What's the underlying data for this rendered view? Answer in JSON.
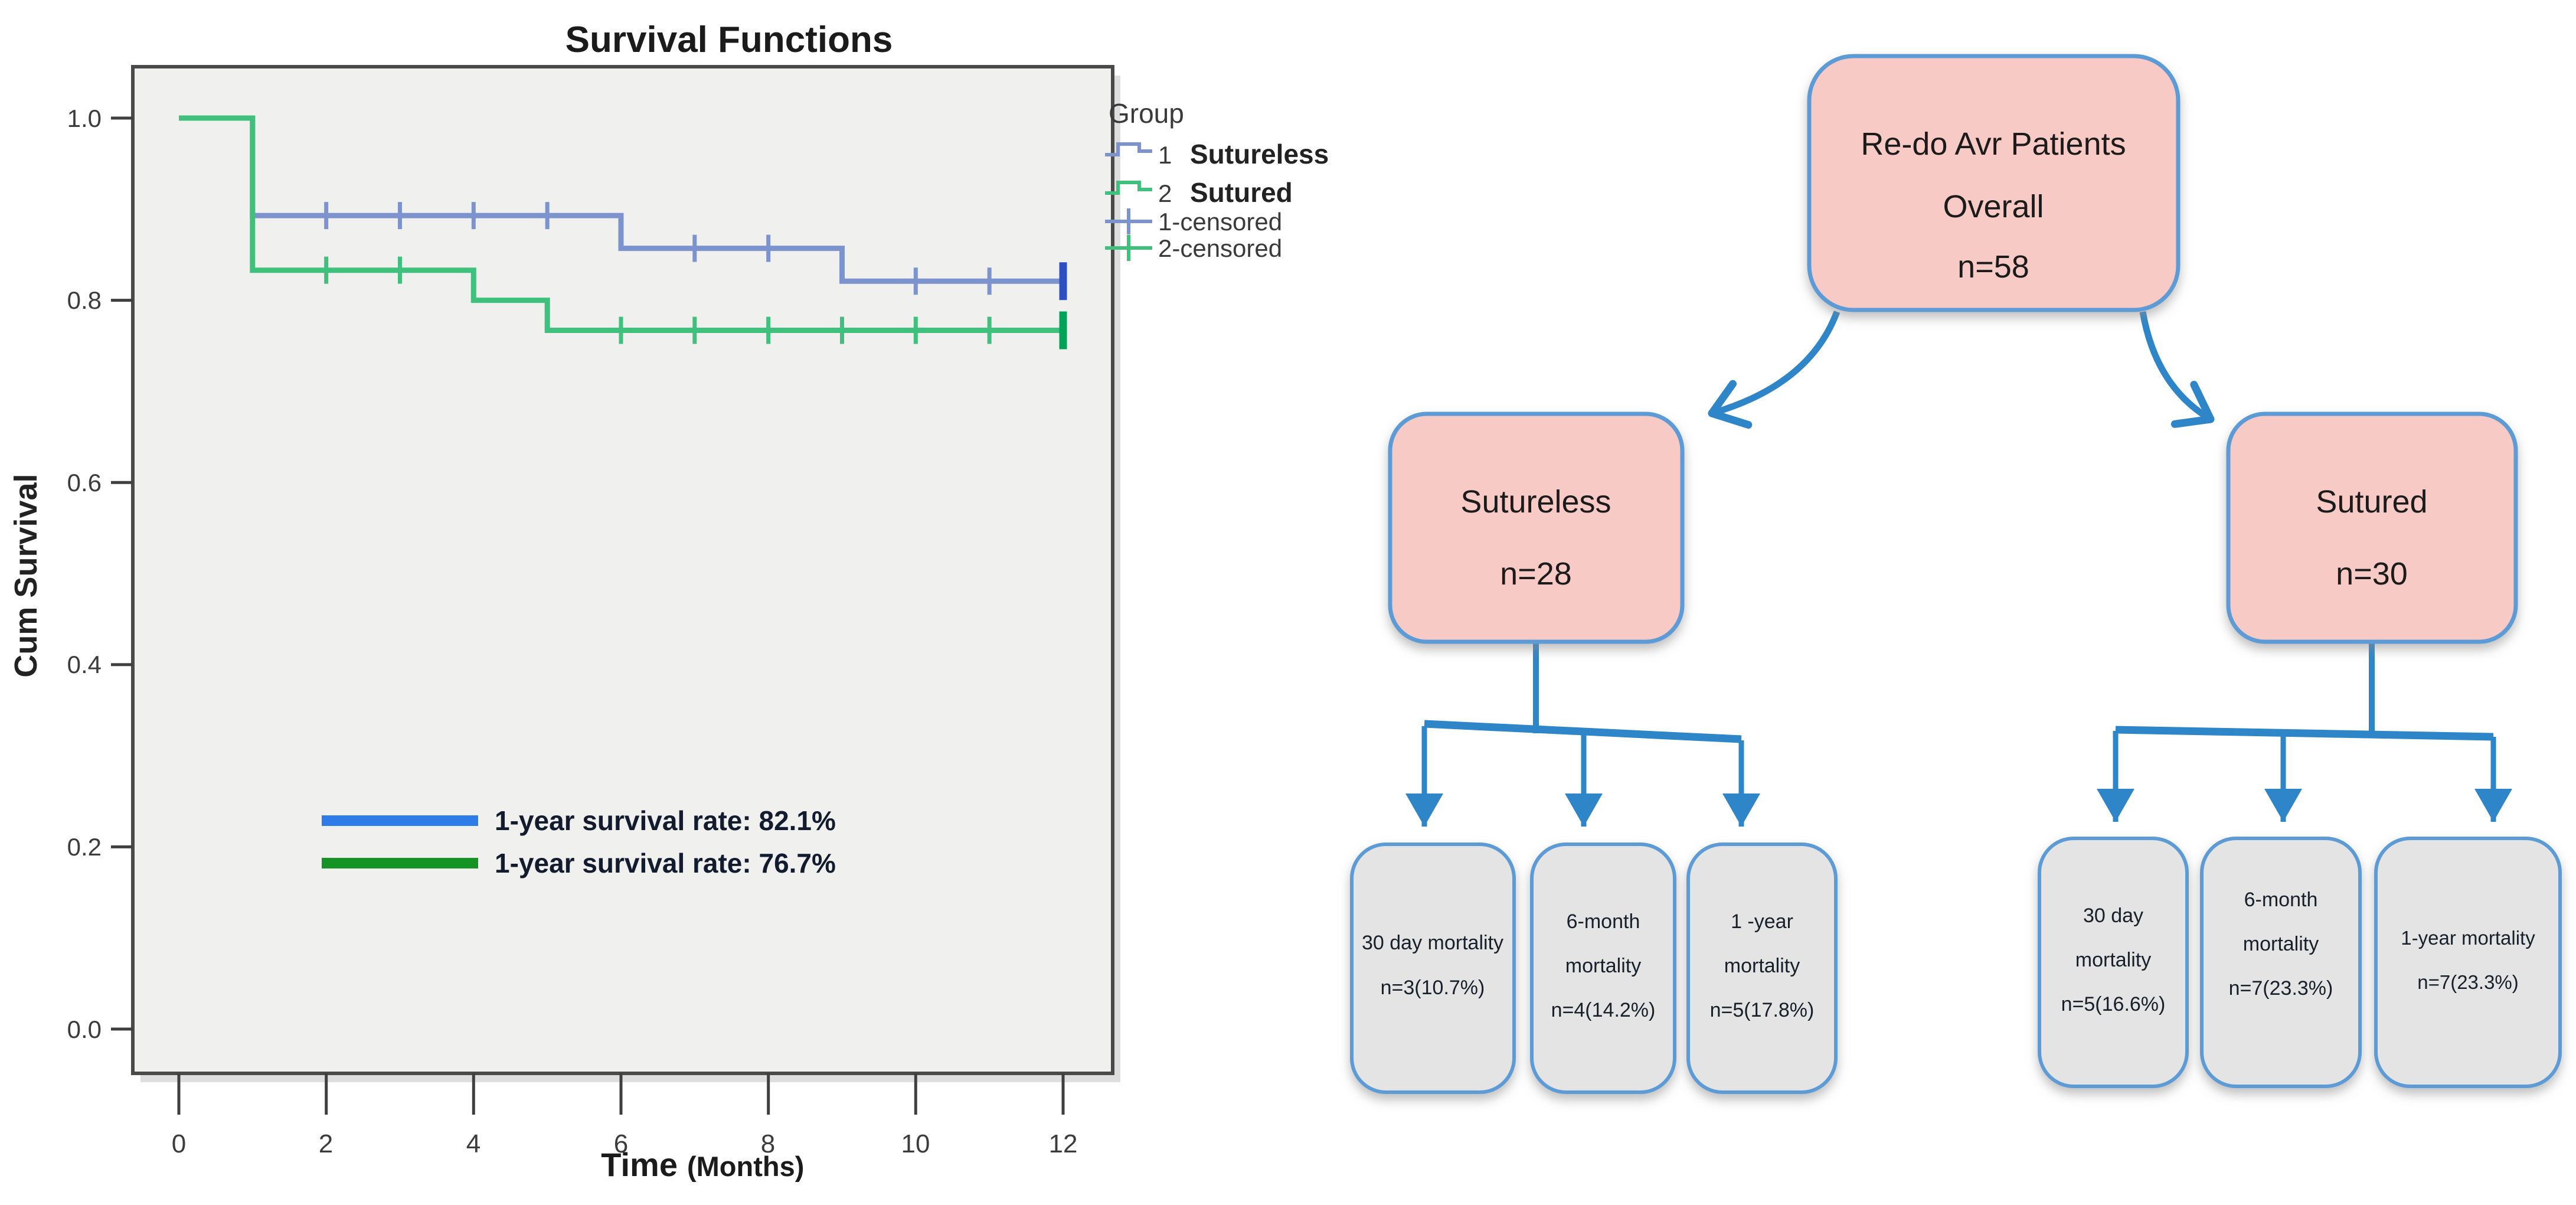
{
  "figure": {
    "description": "Survival Functions Kaplan-Meier chart with Re-do AVR patients flowchart"
  },
  "chart_data": {
    "type": "line",
    "subtype": "kaplan-meier-step",
    "title": "Survival Functions",
    "xlabel": "Time (Months)",
    "xlabel_word": "Time",
    "xlabel_unit": "(Months)",
    "ylabel": "Cum Survival",
    "xlim": [
      0,
      12
    ],
    "ylim": [
      0.0,
      1.0
    ],
    "xticks": [
      0,
      2,
      4,
      6,
      8,
      10,
      12
    ],
    "yticks": [
      1.0,
      0.8,
      0.6,
      0.4,
      0.2,
      0.0
    ],
    "xtick_labels": [
      "0",
      "2",
      "4",
      "6",
      "8",
      "10",
      "12"
    ],
    "ytick_labels": [
      "1.0",
      "0.8",
      "0.6",
      "0.4",
      "0.2",
      "0.0"
    ],
    "grid": false,
    "legend_title": "Group",
    "legend_position": "outside-right-top",
    "style": {
      "plot_bg": "#f0f0ee",
      "frame_color": "#4a4a4a"
    },
    "series": [
      {
        "name": "Sutureless",
        "group_number": "1",
        "color": "#7d93ce",
        "censor_color_final": "#2d4fc4",
        "step_points": [
          [
            0,
            1.0
          ],
          [
            1,
            1.0
          ],
          [
            1,
            0.893
          ],
          [
            6,
            0.893
          ],
          [
            6,
            0.857
          ],
          [
            9,
            0.857
          ],
          [
            9,
            0.821
          ],
          [
            12,
            0.821
          ]
        ],
        "censored_points": [
          [
            2,
            0.893
          ],
          [
            3,
            0.893
          ],
          [
            4,
            0.893
          ],
          [
            5,
            0.893
          ],
          [
            7,
            0.857
          ],
          [
            8,
            0.857
          ],
          [
            10,
            0.821
          ],
          [
            11,
            0.821
          ]
        ],
        "final_censor": [
          12,
          0.821
        ],
        "one_year_survival_rate": "82.1%"
      },
      {
        "name": "Sutured",
        "group_number": "2",
        "color": "#3fc07c",
        "censor_color_final": "#00a357",
        "step_points": [
          [
            0,
            1.0
          ],
          [
            1,
            1.0
          ],
          [
            1,
            0.833
          ],
          [
            4,
            0.833
          ],
          [
            4,
            0.8
          ],
          [
            5,
            0.8
          ],
          [
            5,
            0.767
          ],
          [
            12,
            0.767
          ]
        ],
        "censored_points": [
          [
            2,
            0.833
          ],
          [
            3,
            0.833
          ],
          [
            6,
            0.767
          ],
          [
            7,
            0.767
          ],
          [
            8,
            0.767
          ],
          [
            9,
            0.767
          ],
          [
            10,
            0.767
          ],
          [
            11,
            0.767
          ]
        ],
        "final_censor": [
          12,
          0.767
        ],
        "one_year_survival_rate": "76.7%"
      }
    ],
    "legend_entries": [
      {
        "number": "1",
        "name": "Sutureless",
        "type": "step-line",
        "color": "#7d93ce"
      },
      {
        "number": "2",
        "name": "Sutured",
        "type": "step-line",
        "color": "#3fc07c"
      },
      {
        "label": "1-censored",
        "type": "censor-plus",
        "color": "#7d93ce"
      },
      {
        "label": "2-censored",
        "type": "censor-plus",
        "color": "#3fc07c"
      }
    ],
    "annotations": [
      {
        "label": "1-year survival rate: 82.1%",
        "color": "#2d7ce8"
      },
      {
        "label": "1-year survival rate: 76.7%",
        "color": "#169325"
      }
    ]
  },
  "flowchart": {
    "colors": {
      "node_fill": "#f7cac5",
      "node_border": "#5b9bd5",
      "leaf_fill": "#e4e4e4",
      "leaf_border": "#5b9bd5",
      "connector": "#2e86c8"
    },
    "root": {
      "lines": [
        "Re-do Avr Patients",
        "Overall",
        "n=58"
      ]
    },
    "sutureless": {
      "lines": [
        "Sutureless",
        "n=28"
      ]
    },
    "sutured": {
      "lines": [
        "Sutured",
        "n=30"
      ]
    },
    "sutureless_children": [
      {
        "lines": [
          "30 day mortality",
          "n=3(10.7%)"
        ]
      },
      {
        "lines": [
          "6-month",
          "mortality",
          "n=4(14.2%)"
        ]
      },
      {
        "lines": [
          "1 -year",
          "mortality",
          "n=5(17.8%)"
        ]
      }
    ],
    "sutured_children": [
      {
        "lines": [
          "30 day",
          "mortality",
          "n=5(16.6%)"
        ]
      },
      {
        "lines": [
          "6-month",
          "mortality",
          "n=7(23.3%)"
        ]
      },
      {
        "lines": [
          "1-year mortality",
          "n=7(23.3%)"
        ]
      }
    ]
  }
}
